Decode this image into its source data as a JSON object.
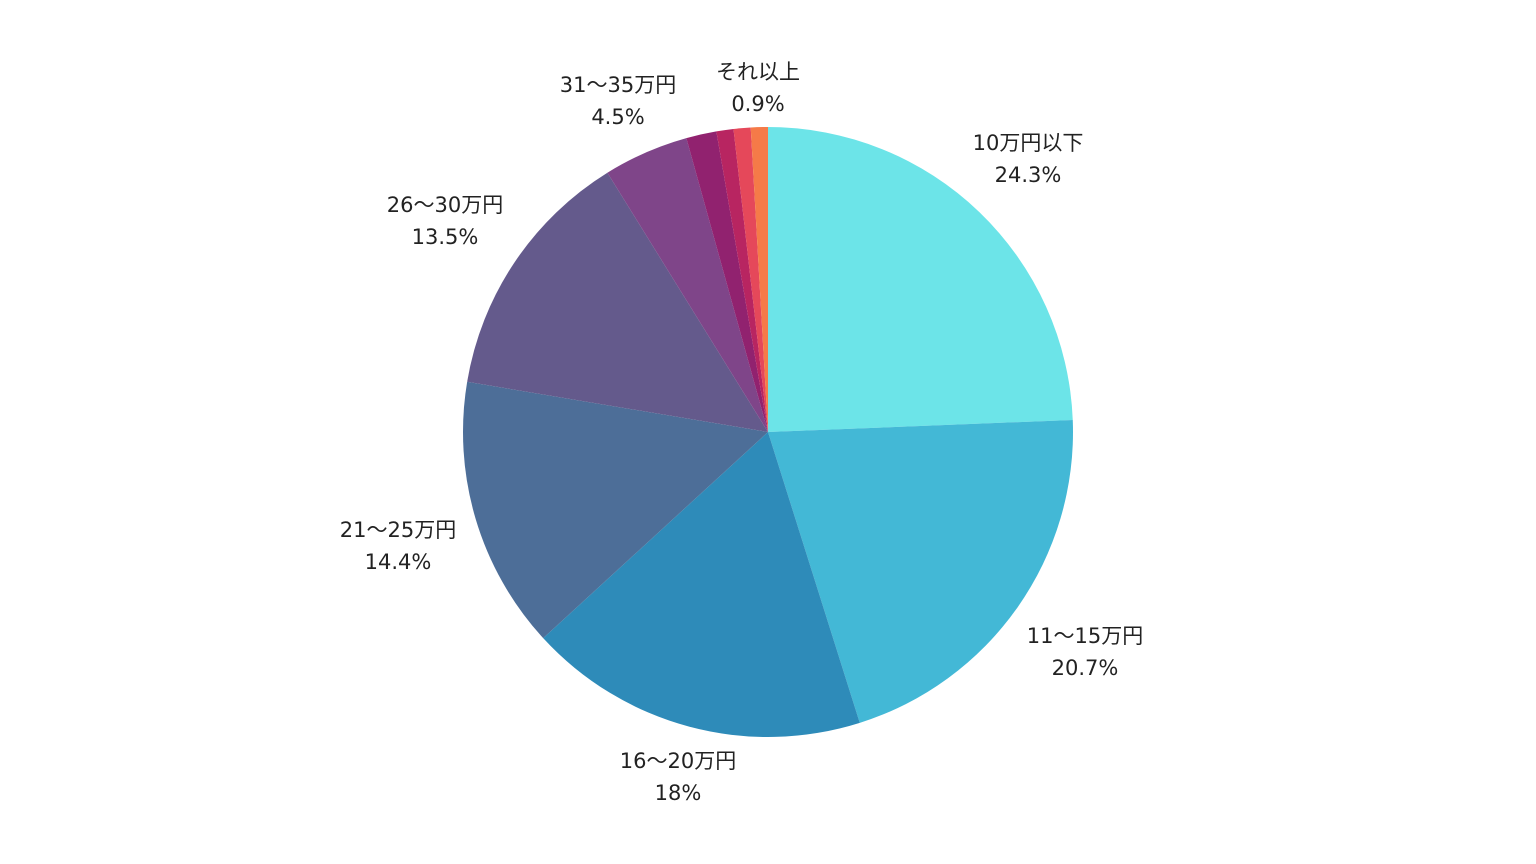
{
  "chart_data": {
    "type": "pie",
    "title": "",
    "start_angle": "12 o'clock",
    "direction": "clockwise",
    "legend": "none",
    "slices": [
      {
        "label": "10万円以下",
        "value": 24.3,
        "value_label": "24.3%",
        "color": "#6ce4e8",
        "show_label": true
      },
      {
        "label": "11〜15万円",
        "value": 20.7,
        "value_label": "20.7%",
        "color": "#43b8d6",
        "show_label": true
      },
      {
        "label": "16〜20万円",
        "value": 18.0,
        "value_label": "18%",
        "color": "#2e8bb9",
        "show_label": true
      },
      {
        "label": "21〜25万円",
        "value": 14.4,
        "value_label": "14.4%",
        "color": "#4d6e98",
        "show_label": true
      },
      {
        "label": "26〜30万円",
        "value": 13.5,
        "value_label": "13.5%",
        "color": "#645a8c",
        "show_label": true
      },
      {
        "label": "31〜35万円",
        "value": 4.5,
        "value_label": "4.5%",
        "color": "#7f4589",
        "show_label": true
      },
      {
        "label": "",
        "value": 1.6,
        "value_label": "",
        "color": "#91226f",
        "show_label": false
      },
      {
        "label": "",
        "value": 0.9,
        "value_label": "",
        "color": "#b82561",
        "show_label": false
      },
      {
        "label": "",
        "value": 0.9,
        "value_label": "",
        "color": "#e5485a",
        "show_label": false
      },
      {
        "label": "それ以上",
        "value": 0.9,
        "value_label": "0.9%",
        "color": "#f57a48",
        "show_label": true
      }
    ]
  }
}
